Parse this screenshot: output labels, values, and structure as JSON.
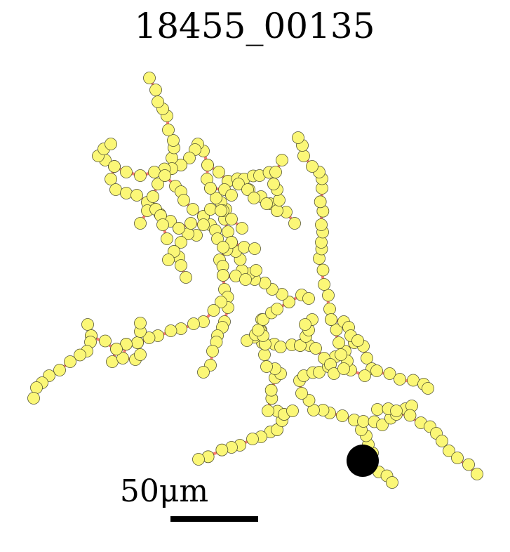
{
  "figure": {
    "title": "18455_00135",
    "scale_bar_label": "50μm"
  },
  "colors": {
    "edge": "#fa7a6e",
    "node_fill": "#fbf777",
    "node_stroke": "#555533",
    "soma": "#000000",
    "scale_bar": "#000000",
    "background": "#ffffff"
  }
}
